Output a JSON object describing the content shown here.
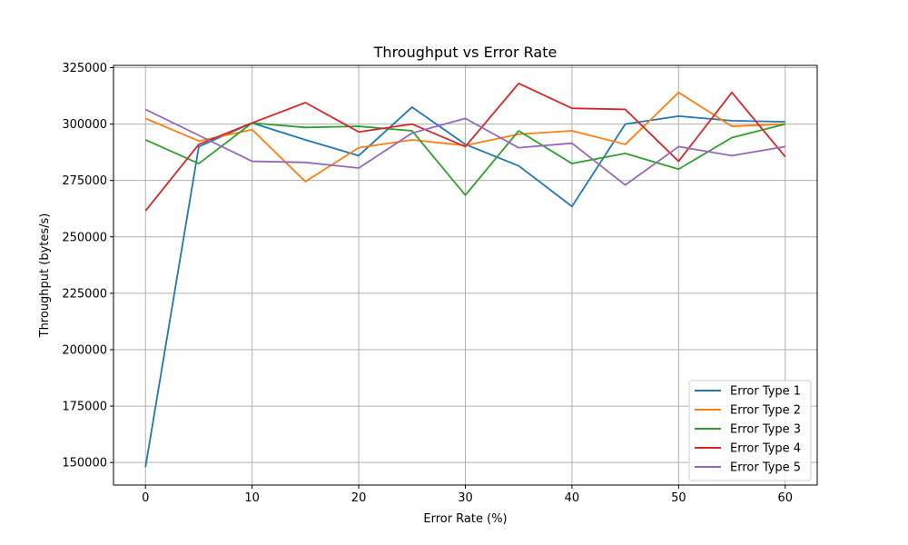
{
  "chart_data": {
    "type": "line",
    "title": "Throughput vs Error Rate",
    "xlabel": "Error Rate (%)",
    "ylabel": "Throughput (bytes/s)",
    "xlim": [
      -3,
      63
    ],
    "ylim": [
      140000,
      326000
    ],
    "xticks": [
      0,
      10,
      20,
      30,
      40,
      50,
      60
    ],
    "yticks": [
      150000,
      175000,
      200000,
      225000,
      250000,
      275000,
      300000,
      325000
    ],
    "grid": true,
    "legend_position": "lower-right",
    "x": [
      0,
      5,
      10,
      15,
      20,
      25,
      30,
      35,
      40,
      45,
      50,
      55,
      60
    ],
    "series": [
      {
        "name": "Error Type 1",
        "color": "#1f77b4",
        "values": [
          148000,
          290000,
          300500,
          293000,
          286000,
          307500,
          291000,
          281500,
          263500,
          300000,
          303500,
          301500,
          301000
        ]
      },
      {
        "name": "Error Type 2",
        "color": "#ff7f0e",
        "values": [
          302500,
          292500,
          297500,
          274500,
          289500,
          293000,
          290500,
          295500,
          297000,
          291000,
          314000,
          299000,
          300000
        ]
      },
      {
        "name": "Error Type 3",
        "color": "#2ca02c",
        "values": [
          293000,
          282500,
          300500,
          298500,
          299000,
          297000,
          268500,
          297000,
          282500,
          287000,
          280000,
          294000,
          300000
        ]
      },
      {
        "name": "Error Type 4",
        "color": "#d62728",
        "values": [
          261500,
          291000,
          300500,
          309500,
          296500,
          300000,
          290000,
          318000,
          307000,
          306500,
          283500,
          314000,
          285500
        ]
      },
      {
        "name": "Error Type 5",
        "color": "#9467bd",
        "values": [
          306500,
          295000,
          283500,
          283000,
          280500,
          296000,
          302500,
          289500,
          291500,
          273000,
          290000,
          286000,
          290000
        ]
      }
    ]
  }
}
